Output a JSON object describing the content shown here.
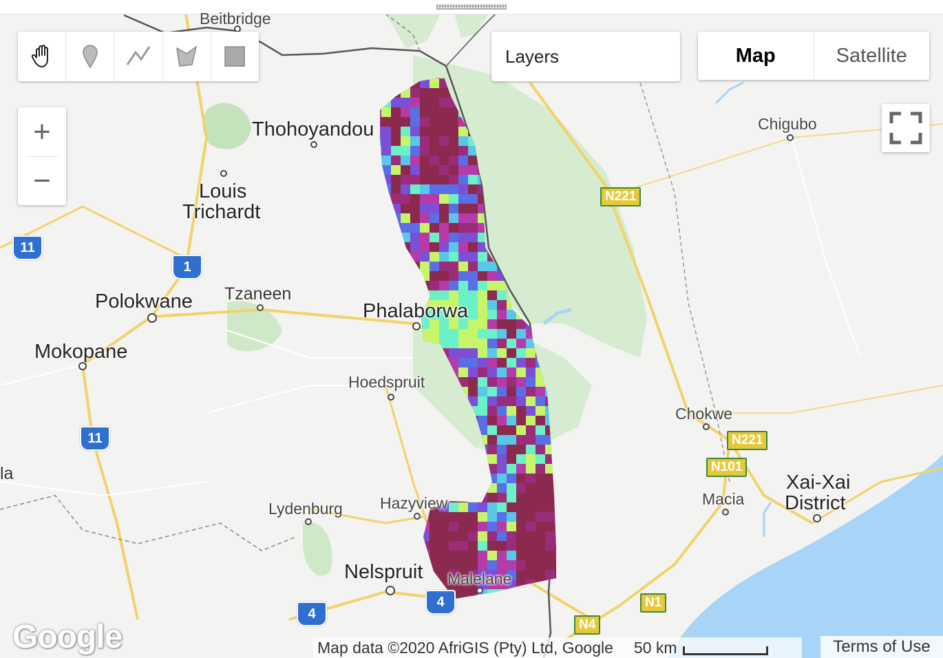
{
  "toolbar": {
    "tools": [
      {
        "name": "hand-icon"
      },
      {
        "name": "marker-icon"
      },
      {
        "name": "line-icon"
      },
      {
        "name": "polygon-icon"
      },
      {
        "name": "rectangle-icon"
      }
    ]
  },
  "zoom": {
    "in_label": "+",
    "out_label": "−"
  },
  "layers_label": "Layers",
  "map_type": {
    "map_label": "Map",
    "satellite_label": "Satellite",
    "active": "Map"
  },
  "places": [
    {
      "id": "beitbridge",
      "text": "Beitbridge"
    },
    {
      "id": "thohoyandou",
      "text": "Thohoyandou"
    },
    {
      "id": "louis-trichardt-1",
      "text": "Louis"
    },
    {
      "id": "louis-trichardt-2",
      "text": "Trichardt"
    },
    {
      "id": "polokwane",
      "text": "Polokwane"
    },
    {
      "id": "tzaneen",
      "text": "Tzaneen"
    },
    {
      "id": "phalaborwa",
      "text": "Phalaborwa"
    },
    {
      "id": "mokopane",
      "text": "Mokopane"
    },
    {
      "id": "hoedspruit",
      "text": "Hoedspruit"
    },
    {
      "id": "hazyview",
      "text": "Hazyview"
    },
    {
      "id": "lydenburg",
      "text": "Lydenburg"
    },
    {
      "id": "nelspruit",
      "text": "Nelspruit"
    },
    {
      "id": "malelane",
      "text": "Malelane"
    },
    {
      "id": "chigubo",
      "text": "Chigubo"
    },
    {
      "id": "chokwe",
      "text": "Chokwe"
    },
    {
      "id": "macia",
      "text": "Macia"
    },
    {
      "id": "xai-xai-1",
      "text": "Xai-Xai"
    },
    {
      "id": "xai-xai-2",
      "text": "District"
    },
    {
      "id": "edge-la",
      "text": "la"
    }
  ],
  "routes": [
    {
      "id": "r11a",
      "text": "11"
    },
    {
      "id": "r1",
      "text": "1"
    },
    {
      "id": "r11b",
      "text": "11"
    },
    {
      "id": "r4a",
      "text": "4"
    },
    {
      "id": "r4b",
      "text": "4"
    },
    {
      "id": "n221a",
      "text": "N221"
    },
    {
      "id": "n221b",
      "text": "N221"
    },
    {
      "id": "n101",
      "text": "N101"
    },
    {
      "id": "n1",
      "text": "N1"
    },
    {
      "id": "n4",
      "text": "N4"
    }
  ],
  "footer": {
    "logo": "Google",
    "attribution": "Map data ©2020 AfriGIS (Pty) Ltd, Google",
    "scale": "50 km",
    "terms": "Terms of Use"
  },
  "colors": {
    "overlay": [
      "#8b2a4e",
      "#9b2c7a",
      "#b63aa8",
      "#7b4fd6",
      "#5a6ee6",
      "#59c8e8",
      "#6cf0c8",
      "#c6f56a"
    ],
    "park": "#cfe8c8",
    "ocean": "#a8d4f7",
    "road": "#f2d26b"
  }
}
